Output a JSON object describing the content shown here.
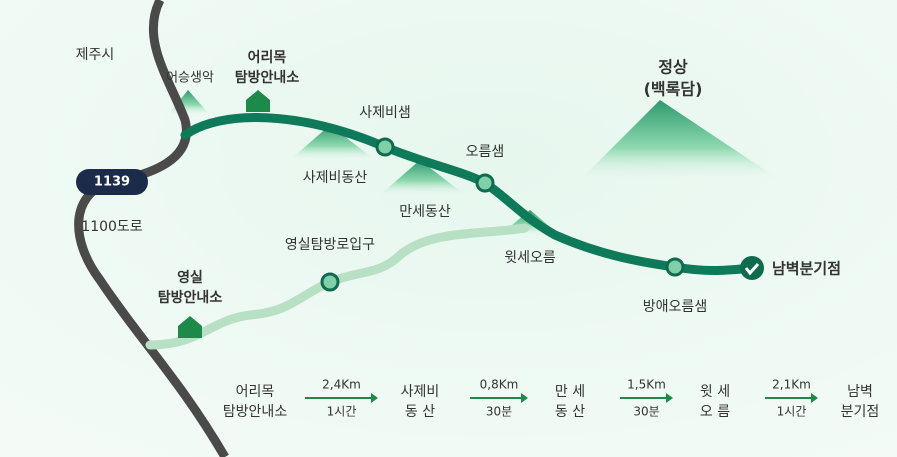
{
  "map": {
    "labels": [
      {
        "lines": [
          "제주시"
        ]
      },
      {
        "lines": [
          "어승생악"
        ]
      },
      {
        "lines": [
          "어리목",
          "탐방안내소"
        ]
      },
      {
        "lines": [
          "사제비샘"
        ]
      },
      {
        "lines": [
          "사제비동산"
        ]
      },
      {
        "lines": [
          "오름샘"
        ]
      },
      {
        "lines": [
          "만세동산"
        ]
      },
      {
        "lines": [
          "정상",
          "(백록담)"
        ]
      },
      {
        "lines": [
          "1100도로"
        ]
      },
      {
        "lines": [
          "영실탐방로입구"
        ]
      },
      {
        "lines": [
          "윗세오름"
        ]
      },
      {
        "lines": [
          "영실",
          "탐방안내소"
        ]
      },
      {
        "lines": [
          "방애오름샘"
        ]
      },
      {
        "lines": [
          "남벽분기점"
        ]
      }
    ],
    "road_number": "1139"
  },
  "route": {
    "stops": [
      [
        "어리목",
        "탐방안내소"
      ],
      [
        "사제비",
        "동 산"
      ],
      [
        "만 세",
        "동 산"
      ],
      [
        "윗 세",
        "오 름"
      ],
      [
        "남벽",
        "분기점"
      ]
    ],
    "legs": [
      {
        "distance": "2,4Km",
        "time": "1시간"
      },
      {
        "distance": "0,8Km",
        "time": "30분"
      },
      {
        "distance": "1,5Km",
        "time": "30분"
      },
      {
        "distance": "2,1Km",
        "time": "1시간"
      }
    ]
  }
}
